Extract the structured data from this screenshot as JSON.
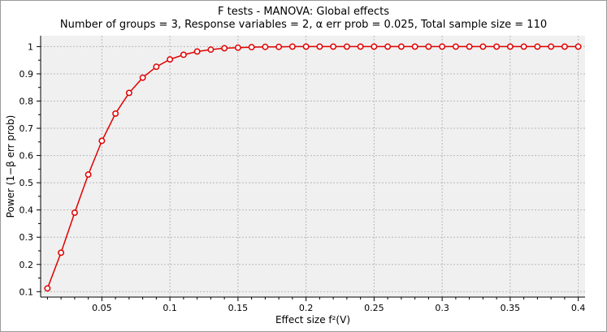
{
  "chart_data": {
    "type": "line",
    "title": "F tests - MANOVA: Global effects",
    "subtitle": "Number of groups = 3, Response variables = 2, α err prob = 0.025, Total sample size = 110",
    "xlabel": "Effect size f²(V)",
    "ylabel": "Power (1−β err prob)",
    "xlim": [
      0.005,
      0.405
    ],
    "ylim": [
      0.08,
      1.04
    ],
    "xticks": [
      0.05,
      0.1,
      0.15,
      0.2,
      0.25,
      0.3,
      0.35,
      0.4
    ],
    "xtick_labels": [
      "0.05",
      "0.1",
      "0.15",
      "0.2",
      "0.25",
      "0.3",
      "0.35",
      "0.4"
    ],
    "yticks": [
      0.1,
      0.2,
      0.3,
      0.4,
      0.5,
      0.6,
      0.7,
      0.8,
      0.9,
      1.0
    ],
    "ytick_labels": [
      "0.1",
      "0.2",
      "0.3",
      "0.4",
      "0.5",
      "0.6",
      "0.7",
      "0.8",
      "0.9",
      "1"
    ],
    "grid": true,
    "series": [
      {
        "color": "#e00000",
        "x": [
          0.01,
          0.02,
          0.03,
          0.04,
          0.05,
          0.06,
          0.07,
          0.08,
          0.09,
          0.1,
          0.11,
          0.12,
          0.13,
          0.14,
          0.15,
          0.16,
          0.17,
          0.18,
          0.19,
          0.2,
          0.21,
          0.22,
          0.23,
          0.24,
          0.25,
          0.26,
          0.27,
          0.28,
          0.29,
          0.3,
          0.31,
          0.32,
          0.33,
          0.34,
          0.35,
          0.36,
          0.37,
          0.38,
          0.39,
          0.4
        ],
        "y": [
          0.112,
          0.243,
          0.39,
          0.53,
          0.654,
          0.754,
          0.83,
          0.886,
          0.926,
          0.953,
          0.97,
          0.982,
          0.989,
          0.994,
          0.996,
          0.998,
          0.999,
          0.999,
          1.0,
          1.0,
          1.0,
          1.0,
          1.0,
          1.0,
          1.0,
          1.0,
          1.0,
          1.0,
          1.0,
          1.0,
          1.0,
          1.0,
          1.0,
          1.0,
          1.0,
          1.0,
          1.0,
          1.0,
          1.0,
          1.0
        ]
      }
    ]
  }
}
